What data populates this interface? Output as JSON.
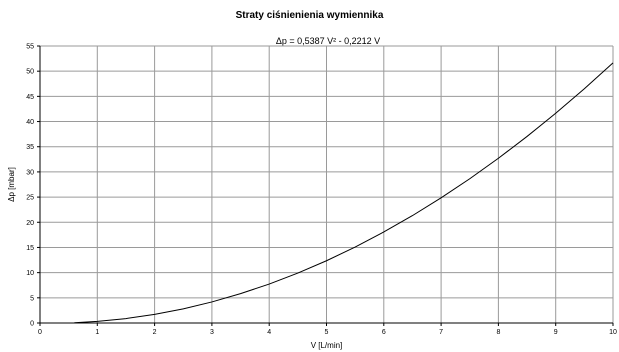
{
  "chart_data": {
    "type": "line",
    "title": "Straty ciśnienienia wymiennika",
    "equation": "Δp = 0,5387 V² - 0,2212 V",
    "xlabel": "V  [L/min]",
    "ylabel": "Δp  [mbar]",
    "xlim": [
      0,
      10
    ],
    "ylim": [
      0,
      55
    ],
    "xticks": [
      0,
      1,
      2,
      3,
      4,
      5,
      6,
      7,
      8,
      9,
      10
    ],
    "yticks": [
      0,
      5,
      10,
      15,
      20,
      25,
      30,
      35,
      40,
      45,
      50,
      55
    ],
    "grid": true,
    "series": [
      {
        "x": [
          0.6,
          1,
          1.5,
          2,
          2.5,
          3,
          3.5,
          4,
          4.5,
          5,
          5.5,
          6,
          6.5,
          7,
          7.5,
          8,
          8.5,
          9,
          9.5,
          10
        ],
        "y": [
          0.06,
          0.32,
          0.88,
          1.71,
          2.81,
          4.18,
          5.83,
          7.73,
          9.91,
          12.36,
          15.08,
          18.07,
          21.32,
          24.85,
          28.64,
          32.71,
          37.04,
          41.64,
          46.51,
          51.66
        ]
      }
    ],
    "colors": {
      "line": "#000000",
      "grid": "#9a9a9a",
      "axis": "#000000"
    }
  }
}
